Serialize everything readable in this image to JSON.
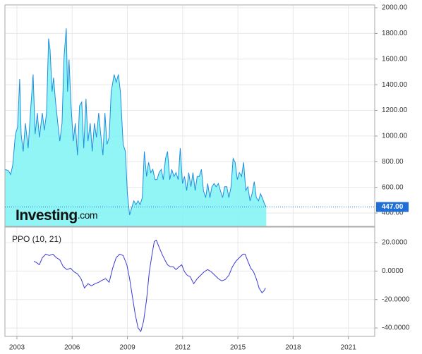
{
  "chart_data": [
    {
      "type": "area",
      "logo": "Investing",
      "logo_suffix": ".com",
      "line_color": "#1e8fe0",
      "fill_color": "#7ff3f3",
      "last_value": 447,
      "last_value_label": "447.00",
      "last_value_color": "#1f6fd6",
      "xlim": [
        2002.35,
        2022.43
      ],
      "ylim": [
        296,
        2022
      ],
      "yticks": [
        {
          "value": 400,
          "label": "400.00"
        },
        {
          "value": 600,
          "label": "600.00"
        },
        {
          "value": 800,
          "label": "800.00"
        },
        {
          "value": 1000,
          "label": "1000.00"
        },
        {
          "value": 1200,
          "label": "1200.00"
        },
        {
          "value": 1400,
          "label": "1400.00"
        },
        {
          "value": 1600,
          "label": "1600.00"
        },
        {
          "value": 1800,
          "label": "1800.00"
        },
        {
          "value": 2000,
          "label": "2000.00"
        }
      ],
      "grid": true,
      "x": [
        2002.35,
        2002.54,
        2002.66,
        2002.77,
        2002.92,
        2003.04,
        2003.15,
        2003.23,
        2003.34,
        2003.46,
        2003.61,
        2003.76,
        2003.88,
        2003.99,
        2004.11,
        2004.22,
        2004.38,
        2004.49,
        2004.61,
        2004.72,
        2004.8,
        2004.91,
        2004.99,
        2005.1,
        2005.22,
        2005.33,
        2005.45,
        2005.56,
        2005.68,
        2005.75,
        2005.83,
        2005.94,
        2006.06,
        2006.17,
        2006.29,
        2006.4,
        2006.52,
        2006.63,
        2006.75,
        2006.86,
        2006.98,
        2007.09,
        2007.21,
        2007.32,
        2007.44,
        2007.55,
        2007.67,
        2007.78,
        2007.89,
        2008.01,
        2008.12,
        2008.28,
        2008.39,
        2008.51,
        2008.62,
        2008.77,
        2008.89,
        2009.0,
        2009.12,
        2009.23,
        2009.35,
        2009.46,
        2009.58,
        2009.69,
        2009.81,
        2009.92,
        2010.04,
        2010.15,
        2010.27,
        2010.38,
        2010.5,
        2010.61,
        2010.72,
        2010.84,
        2010.95,
        2011.07,
        2011.18,
        2011.3,
        2011.41,
        2011.53,
        2011.64,
        2011.76,
        2011.87,
        2011.99,
        2012.1,
        2012.22,
        2012.33,
        2012.45,
        2012.56,
        2012.68,
        2012.79,
        2012.9,
        2013.02,
        2013.13,
        2013.25,
        2013.36,
        2013.48,
        2013.59,
        2013.71,
        2013.82,
        2013.94,
        2014.05,
        2014.17,
        2014.28,
        2014.4,
        2014.51,
        2014.63,
        2014.74,
        2014.85,
        2014.97,
        2015.08,
        2015.2,
        2015.31,
        2015.43,
        2015.54,
        2015.66,
        2015.77,
        2015.89,
        2016.0,
        2016.12,
        2016.23,
        2016.35,
        2016.46,
        2016.54
      ],
      "values": [
        740,
        730,
        700,
        770,
        1015,
        1070,
        1445,
        1015,
        880,
        1100,
        905,
        1235,
        1480,
        1015,
        1180,
        990,
        1180,
        1045,
        1180,
        1760,
        1675,
        1345,
        1455,
        1265,
        1100,
        960,
        1100,
        1620,
        1840,
        1345,
        1595,
        1235,
        960,
        1100,
        850,
        1235,
        1265,
        905,
        1290,
        960,
        1100,
        880,
        1100,
        990,
        1180,
        1015,
        850,
        1180,
        935,
        990,
        1345,
        1480,
        1420,
        1480,
        1345,
        935,
        880,
        550,
        385,
        440,
        495,
        465,
        495,
        465,
        520,
        880,
        685,
        795,
        715,
        740,
        660,
        660,
        715,
        740,
        660,
        825,
        880,
        660,
        740,
        685,
        715,
        660,
        905,
        630,
        685,
        575,
        715,
        605,
        715,
        575,
        685,
        685,
        740,
        575,
        520,
        630,
        520,
        605,
        630,
        605,
        630,
        575,
        520,
        605,
        605,
        520,
        605,
        825,
        795,
        660,
        715,
        685,
        795,
        575,
        605,
        495,
        550,
        645,
        520,
        495,
        550,
        510,
        465,
        447
      ]
    },
    {
      "type": "line",
      "title": "PPO (10, 21)",
      "line_color": "#3a3ad6",
      "xlim": [
        2002.35,
        2022.43
      ],
      "ylim": [
        -45.9,
        30.4
      ],
      "xticks": [
        2003,
        2006,
        2009,
        2012,
        2015,
        2018,
        2021
      ],
      "yticks": [
        {
          "value": -40,
          "label": "-40.0000"
        },
        {
          "value": -20,
          "label": "-20.0000"
        },
        {
          "value": 0,
          "label": "0.0000"
        },
        {
          "value": 20,
          "label": "20.0000"
        }
      ],
      "grid": true,
      "x": [
        2003.92,
        2004.07,
        2004.22,
        2004.38,
        2004.57,
        2004.76,
        2004.95,
        2005.14,
        2005.33,
        2005.52,
        2005.72,
        2005.91,
        2006.1,
        2006.29,
        2006.48,
        2006.67,
        2006.86,
        2007.05,
        2007.24,
        2007.44,
        2007.63,
        2007.82,
        2008.01,
        2008.2,
        2008.39,
        2008.58,
        2008.77,
        2008.97,
        2009.12,
        2009.27,
        2009.42,
        2009.58,
        2009.73,
        2009.88,
        2010.04,
        2010.19,
        2010.34,
        2010.46,
        2010.57,
        2010.72,
        2010.88,
        2011.03,
        2011.18,
        2011.34,
        2011.49,
        2011.64,
        2011.8,
        2011.95,
        2012.1,
        2012.25,
        2012.41,
        2012.6,
        2012.79,
        2012.98,
        2013.17,
        2013.36,
        2013.55,
        2013.75,
        2013.94,
        2014.13,
        2014.32,
        2014.51,
        2014.7,
        2014.89,
        2015.08,
        2015.28,
        2015.39,
        2015.54,
        2015.7,
        2015.85,
        2016.0,
        2016.15,
        2016.31,
        2016.42,
        2016.5
      ],
      "values": [
        6.9,
        5.9,
        4.4,
        9.4,
        11.9,
        10.9,
        11.9,
        9.4,
        7.9,
        3.0,
        1.0,
        2.0,
        -0.5,
        -2.0,
        -5.4,
        -11.9,
        -8.9,
        -10.4,
        -8.9,
        -7.9,
        -6.4,
        -5.4,
        -7.9,
        2.0,
        9.4,
        11.9,
        10.9,
        4.4,
        -5.4,
        -17.8,
        -30.1,
        -40.0,
        -42.5,
        -35.1,
        -20.2,
        -0.5,
        11.9,
        20.7,
        21.7,
        16.8,
        11.9,
        7.9,
        4.4,
        3.0,
        3.0,
        1.0,
        3.0,
        4.4,
        -0.5,
        -3.0,
        -4.0,
        -8.9,
        -5.4,
        -3.0,
        -0.5,
        1.0,
        -0.5,
        -3.0,
        -5.4,
        -6.9,
        -5.9,
        -3.0,
        3.0,
        6.9,
        9.4,
        11.9,
        11.9,
        6.9,
        2.0,
        -0.5,
        -5.4,
        -11.9,
        -15.3,
        -13.8,
        -11.9
      ]
    }
  ]
}
